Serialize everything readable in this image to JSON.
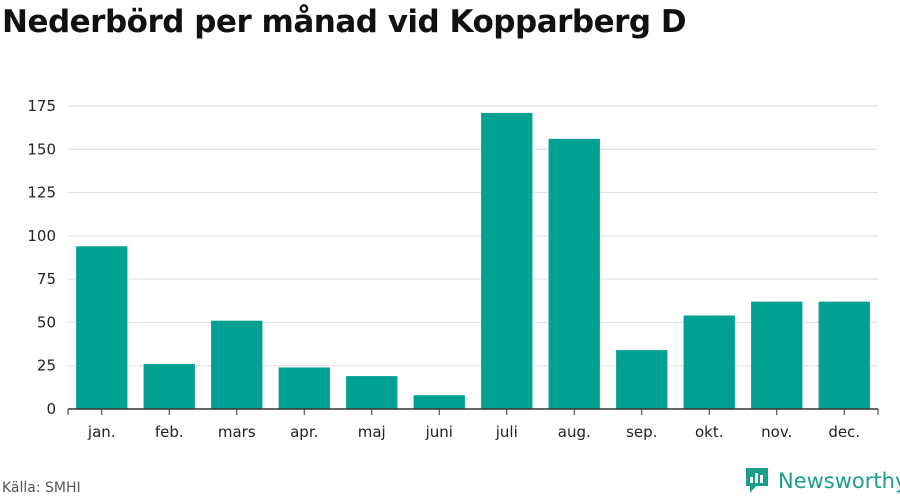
{
  "title": "Nederbörd per månad vid Kopparberg D",
  "source": "Källa: SMHI",
  "brand": {
    "name": "Newsworthy",
    "icon": "newsworthy-logo-icon",
    "color": "#1a9e8c"
  },
  "colors": {
    "bar": "#00a092",
    "grid": "#dddddd",
    "axis": "#333333"
  },
  "chart_data": {
    "type": "bar",
    "title": "Nederbörd per månad vid Kopparberg D",
    "xlabel": "",
    "ylabel": "",
    "categories": [
      "jan.",
      "feb.",
      "mars",
      "apr.",
      "maj",
      "juni",
      "juli",
      "aug.",
      "sep.",
      "okt.",
      "nov.",
      "dec."
    ],
    "values": [
      94,
      26,
      51,
      24,
      19,
      8,
      171,
      156,
      34,
      54,
      62,
      62
    ],
    "ylim": [
      0,
      175
    ],
    "yticks": [
      0,
      25,
      50,
      75,
      100,
      125,
      150,
      175
    ],
    "grid": true,
    "legend": "none"
  }
}
